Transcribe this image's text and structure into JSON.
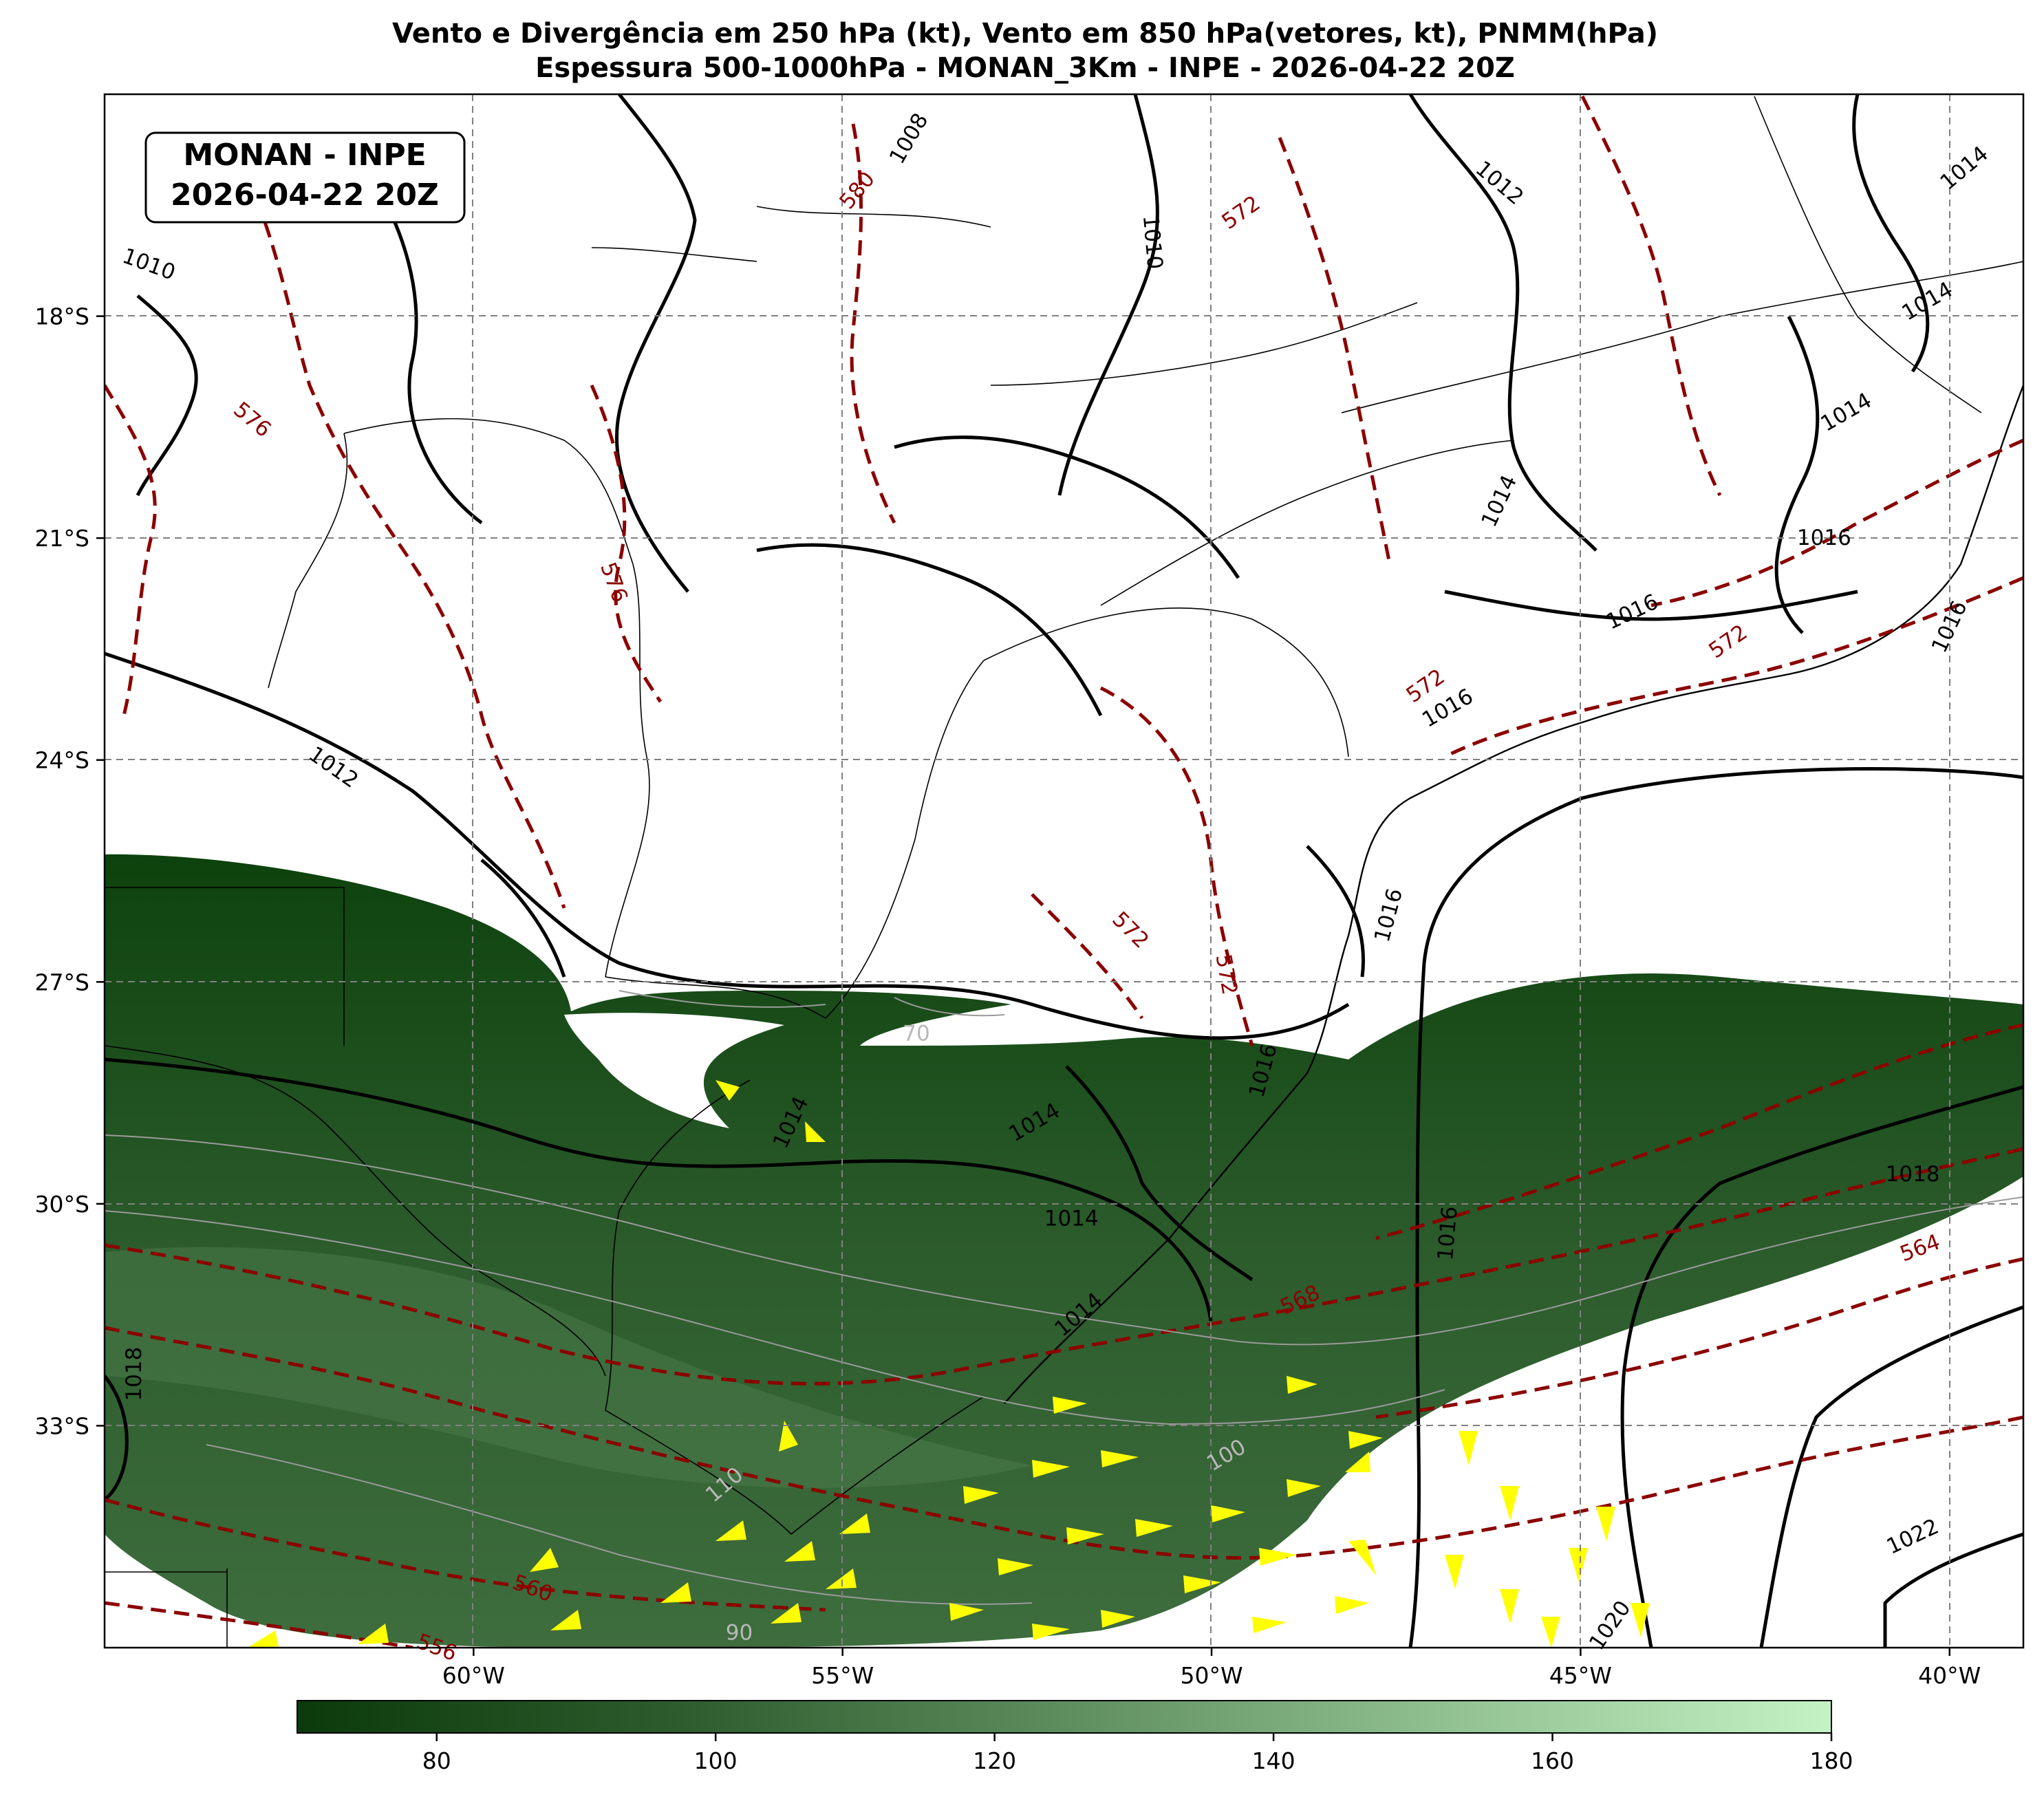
{
  "title": {
    "line1": "Vento e Divergência em 250 hPa (kt), Vento em 850 hPa(vetores, kt), PNMM(hPa)",
    "line2": "Espessura 500-1000hPa - MONAN_3Km - INPE - 2026-04-22 20Z"
  },
  "info_box": {
    "line1": "MONAN - INPE",
    "line2": "2026-04-22 20Z"
  },
  "map": {
    "lon_range": [
      -65,
      -39
    ],
    "lat_range": [
      -36,
      -15
    ],
    "x_ticks": [
      {
        "lon": -60,
        "label": "60°W"
      },
      {
        "lon": -55,
        "label": "55°W"
      },
      {
        "lon": -50,
        "label": "50°W"
      },
      {
        "lon": -45,
        "label": "45°W"
      },
      {
        "lon": -40,
        "label": "40°W"
      }
    ],
    "y_ticks": [
      {
        "lat": -18,
        "label": "18°S"
      },
      {
        "lat": -21,
        "label": "21°S"
      },
      {
        "lat": -24,
        "label": "24°S"
      },
      {
        "lat": -27,
        "label": "27°S"
      },
      {
        "lat": -30,
        "label": "30°S"
      },
      {
        "lat": -33,
        "label": "33°S"
      }
    ],
    "grid": true
  },
  "colorbar": {
    "min": 70,
    "max": 180,
    "ticks": [
      "80",
      "100",
      "120",
      "140",
      "160",
      "180"
    ],
    "colors": {
      "low": "#0b3a0b",
      "high": "#c4f2c4"
    }
  },
  "pressure_labels": [
    {
      "text": "1008",
      "lon": -54.1,
      "lat": -15.6,
      "rot": -60
    },
    {
      "text": "1010",
      "lon": -64.4,
      "lat": -17.3,
      "rot": 20
    },
    {
      "text": "1010",
      "lon": -50.8,
      "lat": -17.0,
      "rot": 85
    },
    {
      "text": "1012",
      "lon": -46.1,
      "lat": -16.2,
      "rot": 40
    },
    {
      "text": "1014",
      "lon": -39.8,
      "lat": -16.0,
      "rot": -40
    },
    {
      "text": "1014",
      "lon": -40.3,
      "lat": -17.8,
      "rot": -30
    },
    {
      "text": "1014",
      "lon": -41.4,
      "lat": -19.3,
      "rot": -30
    },
    {
      "text": "1014",
      "lon": -46.1,
      "lat": -20.5,
      "rot": -65
    },
    {
      "text": "1016",
      "lon": -41.7,
      "lat": -21.0,
      "rot": 0
    },
    {
      "text": "1016",
      "lon": -44.3,
      "lat": -22.0,
      "rot": -25
    },
    {
      "text": "1016",
      "lon": -40.0,
      "lat": -22.2,
      "rot": -65
    },
    {
      "text": "1016",
      "lon": -46.8,
      "lat": -23.3,
      "rot": -30
    },
    {
      "text": "1016",
      "lon": -47.6,
      "lat": -26.1,
      "rot": -75
    },
    {
      "text": "1016",
      "lon": -49.3,
      "lat": -28.2,
      "rot": -75
    },
    {
      "text": "1012",
      "lon": -61.9,
      "lat": -24.1,
      "rot": 35
    },
    {
      "text": "1014",
      "lon": -55.7,
      "lat": -28.9,
      "rot": -65
    },
    {
      "text": "1014",
      "lon": -52.4,
      "lat": -28.9,
      "rot": -30
    },
    {
      "text": "1014",
      "lon": -51.9,
      "lat": -30.2,
      "rot": 0
    },
    {
      "text": "1014",
      "lon": -51.8,
      "lat": -31.5,
      "rot": -40
    },
    {
      "text": "1016",
      "lon": -46.8,
      "lat": -30.4,
      "rot": -85
    },
    {
      "text": "1018",
      "lon": -40.5,
      "lat": -29.6,
      "rot": 0
    },
    {
      "text": "1018",
      "lon": -64.6,
      "lat": -32.3,
      "rot": -90
    },
    {
      "text": "1020",
      "lon": -44.6,
      "lat": -35.7,
      "rot": -55
    },
    {
      "text": "1022",
      "lon": -40.5,
      "lat": -34.5,
      "rot": -25
    }
  ],
  "thickness_labels": [
    {
      "text": "580",
      "lon": -54.8,
      "lat": -16.3,
      "rot": -50
    },
    {
      "text": "576",
      "lon": -63.0,
      "lat": -19.4,
      "rot": 40
    },
    {
      "text": "576",
      "lon": -58.1,
      "lat": -21.6,
      "rot": 70
    },
    {
      "text": "572",
      "lon": -49.6,
      "lat": -16.6,
      "rot": -35
    },
    {
      "text": "572",
      "lon": -43.0,
      "lat": -22.4,
      "rot": -35
    },
    {
      "text": "572",
      "lon": -47.1,
      "lat": -23.0,
      "rot": -35
    },
    {
      "text": "572",
      "lon": -51.1,
      "lat": -26.3,
      "rot": 45
    },
    {
      "text": "572",
      "lon": -49.8,
      "lat": -26.9,
      "rot": 80
    },
    {
      "text": "568",
      "lon": -48.8,
      "lat": -31.3,
      "rot": -25
    },
    {
      "text": "564",
      "lon": -40.4,
      "lat": -30.6,
      "rot": -20
    },
    {
      "text": "560",
      "lon": -59.2,
      "lat": -35.2,
      "rot": 20
    },
    {
      "text": "556",
      "lon": -60.5,
      "lat": -36.0,
      "rot": 20
    }
  ],
  "wind_labels": [
    {
      "text": "70",
      "lon": -54.0,
      "lat": -27.7,
      "rot": 0
    },
    {
      "text": "100",
      "lon": -49.8,
      "lat": -33.4,
      "rot": -30
    },
    {
      "text": "110",
      "lon": -56.6,
      "lat": -33.8,
      "rot": -40
    },
    {
      "text": "90",
      "lon": -56.4,
      "lat": -35.8,
      "rot": 0
    }
  ]
}
